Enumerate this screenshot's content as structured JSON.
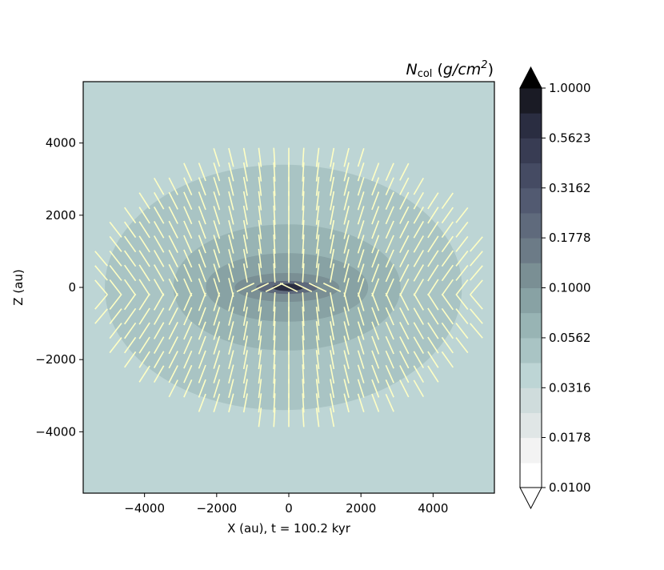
{
  "chart_data": {
    "type": "heatmap",
    "subtype": "filled-contour with polarization vectors",
    "xlabel": "X (au), t = 100.2 kyr",
    "ylabel": "Z (au)",
    "xlim": [
      -5700,
      5700
    ],
    "ylim": [
      -5700,
      5700
    ],
    "xticks": [
      -4000,
      -2000,
      0,
      2000,
      4000
    ],
    "xtick_labels": [
      "−4000",
      "−2000",
      "0",
      "2000",
      "4000"
    ],
    "yticks": [
      -4000,
      -2000,
      0,
      2000,
      4000
    ],
    "ytick_labels": [
      "−4000",
      "−2000",
      "0",
      "2000",
      "4000"
    ],
    "grid": false,
    "colorbar": {
      "title_main": "N",
      "title_sub": "col",
      "title_unit_prefix": " (",
      "title_unit": "g/cm",
      "title_unit_exp": "2",
      "title_unit_suffix": ")",
      "scale": "log",
      "range": [
        0.01,
        1.0
      ],
      "extend": "both",
      "levels": [
        0.01,
        0.0133,
        0.0178,
        0.0237,
        0.0316,
        0.0422,
        0.0562,
        0.075,
        0.1,
        0.1334,
        0.1778,
        0.2371,
        0.3162,
        0.4217,
        0.5623,
        0.7499,
        1.0
      ],
      "ticks": [
        0.01,
        0.0178,
        0.0316,
        0.0562,
        0.1,
        0.1778,
        0.3162,
        0.5623,
        1.0
      ],
      "tick_labels": [
        "0.0100",
        "0.0178",
        "0.0316",
        "0.0562",
        "0.1000",
        "0.1778",
        "0.3162",
        "0.5623",
        "1.0000"
      ],
      "colormap": "bone_r",
      "colors_low_to_high": [
        "#ffffff",
        "#f3f3f3",
        "#e0e6e6",
        "#cfdcdc",
        "#bdd5d5",
        "#a9c4c4",
        "#98b4b4",
        "#88a2a4",
        "#7a8f94",
        "#6c7b87",
        "#5f6a7c",
        "#525a71",
        "#454b63",
        "#383c53",
        "#2a2d41",
        "#1a1b25",
        "#000000"
      ]
    },
    "contour_regions": [
      {
        "level_min": 0.0316,
        "level_max": 0.0422,
        "extent_x": [
          -5700,
          5700
        ],
        "extent_z": [
          -5700,
          5700
        ]
      },
      {
        "level_min": 0.0422,
        "level_max": 0.0562,
        "extent_x": [
          -5100,
          4800
        ],
        "extent_z": [
          -3400,
          3400
        ]
      },
      {
        "level_min": 0.0562,
        "level_max": 0.075,
        "extent_x": [
          -3200,
          3100
        ],
        "extent_z": [
          -1750,
          1750
        ]
      },
      {
        "level_min": 0.075,
        "level_max": 0.1,
        "extent_x": [
          -2300,
          2200
        ],
        "extent_z": [
          -950,
          950
        ]
      },
      {
        "level_min": 0.1,
        "level_max": 0.1778,
        "extent_x": [
          -1500,
          1400
        ],
        "extent_z": [
          -400,
          400
        ]
      },
      {
        "level_min": 0.1778,
        "level_max": 0.5623,
        "extent_x": [
          -900,
          800
        ],
        "extent_z": [
          -180,
          180
        ]
      },
      {
        "level_min": 0.5623,
        "level_max": 1.0,
        "extent_x": [
          -450,
          400
        ],
        "extent_z": [
          -100,
          100
        ]
      }
    ],
    "polarization_vectors": {
      "color": "#ffffc4",
      "grid_spacing_au": 400,
      "region": "ellipse",
      "region_x": [
        -5400,
        5600
      ],
      "region_z": [
        -3700,
        3900
      ],
      "orientation": "mostly vertical, tilting outward away from the midplane; near-horizontal within |X| < 1500, |Z| < 300"
    }
  }
}
